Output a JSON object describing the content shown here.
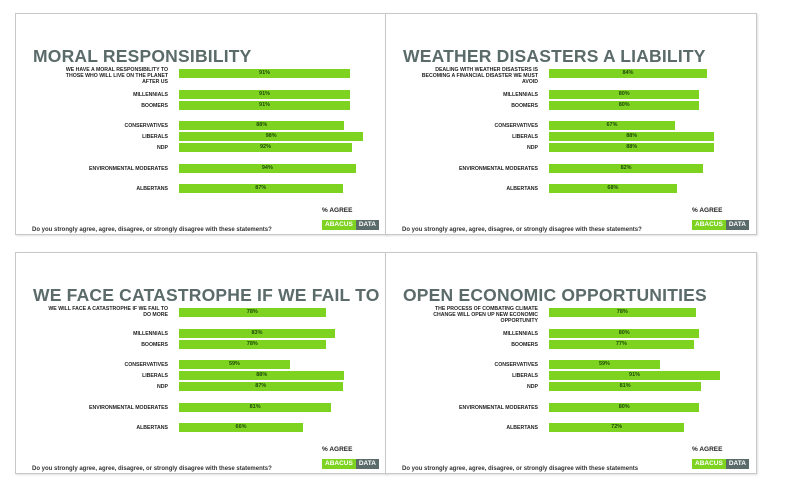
{
  "colors": {
    "bar": "#7ed321",
    "title": "#5a6b6a",
    "logo_dark": "#5a6b6a"
  },
  "common": {
    "axis_label": "% AGREE",
    "logo_part1": "ABACUS",
    "logo_part2": "DATA"
  },
  "chart_data": [
    {
      "type": "bar",
      "orientation": "horizontal",
      "title": "MORAL RESPONSIBILITY",
      "question": "Do you strongly agree, agree, disagree, or strongly disagree with these statements?",
      "xlabel": "% AGREE",
      "xlim": [
        0,
        100
      ],
      "categories": [
        "WE HAVE A MORAL RESPONSIBILITY TO THOSE WHO WILL LIVE ON THE PLANET AFTER US",
        "MILLENNIALS",
        "BOOMERS",
        "CONSERVATIVES",
        "LIBERALS",
        "NDP",
        "ENVIRONMENTAL MODERATES",
        "ALBERTANS"
      ],
      "values": [
        91,
        91,
        91,
        88,
        98,
        92,
        94,
        87
      ]
    },
    {
      "type": "bar",
      "orientation": "horizontal",
      "title": "WEATHER DISASTERS A LIABILITY",
      "question": "Do you strongly agree, agree, disagree, or strongly disagree with these statements?",
      "xlabel": "% AGREE",
      "xlim": [
        0,
        100
      ],
      "categories": [
        "DEALING WITH WEATHER DISASTERS IS BECOMING A FINANCIAL DISASTER WE MUST AVOID",
        "MILLENNIALS",
        "BOOMERS",
        "CONSERVATIVES",
        "LIBERALS",
        "NDP",
        "ENVIRONMENTAL MODERATES",
        "ALBERTANS"
      ],
      "values": [
        84,
        80,
        80,
        67,
        88,
        88,
        82,
        68
      ]
    },
    {
      "type": "bar",
      "orientation": "horizontal",
      "title": "WE FACE CATASTROPHE IF WE FAIL TO DO MORE",
      "question": "Do you strongly agree, agree, disagree, or strongly disagree with these statements?",
      "xlabel": "% AGREE",
      "xlim": [
        0,
        100
      ],
      "categories": [
        "WE WILL FACE A CATASTROPHE IF WE FAIL TO DO MORE",
        "MILLENNIALS",
        "BOOMERS",
        "CONSERVATIVES",
        "LIBERALS",
        "NDP",
        "ENVIRONMENTAL MODERATES",
        "ALBERTANS"
      ],
      "values": [
        78,
        83,
        78,
        59,
        88,
        87,
        81,
        66
      ]
    },
    {
      "type": "bar",
      "orientation": "horizontal",
      "title": "OPEN ECONOMIC OPPORTUNITIES",
      "question": "Do you strongly agree, agree, disagree, or strongly disagree with these statements",
      "xlabel": "% AGREE",
      "xlim": [
        0,
        100
      ],
      "categories": [
        "THE PROCESS OF COMBATING CLIMATE CHANGE WILL OPEN UP NEW ECONOMIC OPPORTUNITY",
        "MILLENNIALS",
        "BOOMERS",
        "CONSERVATIVES",
        "LIBERALS",
        "NDP",
        "ENVIRONMENTAL MODERATES",
        "ALBERTANS"
      ],
      "values": [
        78,
        80,
        77,
        59,
        91,
        81,
        80,
        72
      ]
    }
  ]
}
